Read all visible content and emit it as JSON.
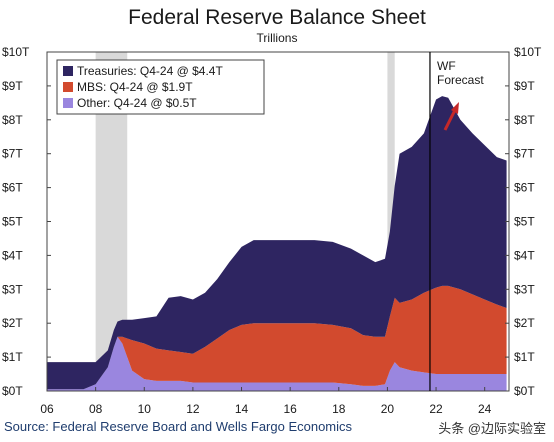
{
  "title": "Federal Reserve Balance Sheet",
  "subtitle": "Trillions",
  "source": "Source: Federal Reserve Board and Wells Fargo Economics",
  "watermark": "头条 @边际实验室",
  "colors": {
    "treasuries": "#2e2561",
    "mbs": "#d24a2e",
    "other": "#9a86df",
    "recession": "#d9d9d9",
    "forecast_line": "#000000",
    "arrow": "#c62828"
  },
  "chart_data": {
    "type": "area",
    "stacked": true,
    "title": "Federal Reserve Balance Sheet",
    "subtitle": "Trillions",
    "x_axis": {
      "range": [
        2006,
        2025
      ],
      "tick_values": [
        2006,
        2008,
        2010,
        2012,
        2014,
        2016,
        2018,
        2020,
        2022,
        2024
      ],
      "tick_labels": [
        "06",
        "08",
        "10",
        "12",
        "14",
        "16",
        "18",
        "20",
        "22",
        "24"
      ]
    },
    "y_axis": {
      "range": [
        0,
        10
      ],
      "tick_values": [
        0,
        1,
        2,
        3,
        4,
        5,
        6,
        7,
        8,
        9,
        10
      ],
      "tick_labels": [
        "$0T",
        "$1T",
        "$2T",
        "$3T",
        "$4T",
        "$5T",
        "$6T",
        "$7T",
        "$8T",
        "$9T",
        "$10T"
      ],
      "mirrored_right": true
    },
    "recessions": [
      [
        2008.0,
        2009.3
      ],
      [
        2020.0,
        2020.3
      ]
    ],
    "forecast_start": 2021.75,
    "forecast_label": [
      "WF",
      "Forecast"
    ],
    "legend": {
      "placement": "top-left",
      "entries": [
        "Treasuries: Q4-24 @ $4.4T",
        "MBS: Q4-24 @ $1.9T",
        "Other: Q4-24 @ $0.5T"
      ]
    },
    "x": [
      2006.0,
      2007.0,
      2007.5,
      2008.0,
      2008.5,
      2008.75,
      2008.9,
      2009.1,
      2009.5,
      2010.0,
      2010.5,
      2011.0,
      2011.5,
      2012.0,
      2012.5,
      2013.0,
      2013.5,
      2014.0,
      2014.5,
      2015.0,
      2016.0,
      2017.0,
      2017.75,
      2018.5,
      2019.0,
      2019.5,
      2019.9,
      2020.1,
      2020.3,
      2020.5,
      2021.0,
      2021.5,
      2022.0,
      2022.25,
      2022.5,
      2023.0,
      2023.5,
      2024.0,
      2024.5,
      2024.9
    ],
    "series": [
      {
        "name": "Other",
        "legend": "Other: Q4-24 @ $0.5T",
        "values": [
          0.05,
          0.05,
          0.05,
          0.2,
          0.7,
          1.3,
          1.6,
          1.4,
          0.6,
          0.35,
          0.3,
          0.3,
          0.3,
          0.25,
          0.25,
          0.25,
          0.25,
          0.25,
          0.25,
          0.25,
          0.25,
          0.25,
          0.25,
          0.2,
          0.15,
          0.15,
          0.2,
          0.6,
          0.85,
          0.7,
          0.6,
          0.55,
          0.5,
          0.5,
          0.5,
          0.5,
          0.5,
          0.5,
          0.5,
          0.5
        ]
      },
      {
        "name": "MBS",
        "legend": "MBS: Q4-24 @ $1.9T",
        "values": [
          0,
          0,
          0,
          0,
          0,
          0,
          0,
          0.2,
          0.9,
          1.05,
          0.95,
          0.9,
          0.85,
          0.85,
          1.05,
          1.3,
          1.55,
          1.7,
          1.75,
          1.75,
          1.75,
          1.75,
          1.7,
          1.65,
          1.5,
          1.45,
          1.4,
          1.6,
          1.9,
          1.9,
          2.1,
          2.35,
          2.55,
          2.6,
          2.6,
          2.5,
          2.35,
          2.2,
          2.05,
          1.95
        ]
      },
      {
        "name": "Treasuries",
        "legend": "Treasuries: Q4-24 @ $4.4T",
        "values": [
          0.8,
          0.8,
          0.8,
          0.65,
          0.5,
          0.5,
          0.45,
          0.5,
          0.6,
          0.75,
          0.95,
          1.55,
          1.65,
          1.6,
          1.6,
          1.75,
          2.0,
          2.3,
          2.45,
          2.45,
          2.45,
          2.45,
          2.45,
          2.35,
          2.35,
          2.2,
          2.3,
          2.5,
          3.3,
          4.4,
          4.5,
          4.7,
          5.55,
          5.6,
          5.55,
          5.0,
          4.75,
          4.55,
          4.35,
          4.35
        ]
      }
    ]
  }
}
